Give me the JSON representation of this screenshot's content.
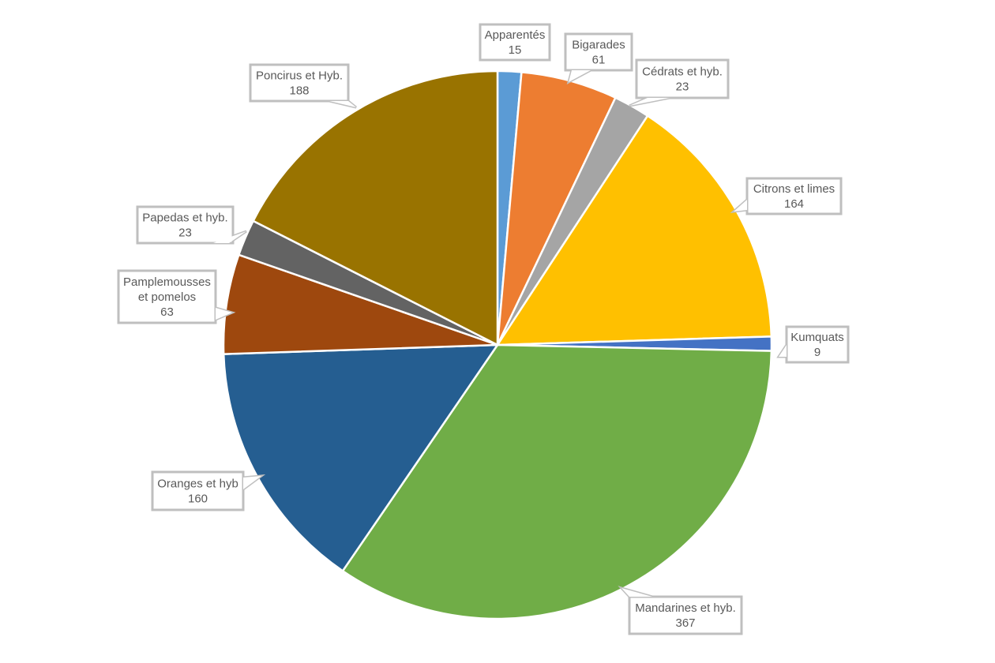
{
  "chart_data": {
    "type": "pie",
    "title": "",
    "slices": [
      {
        "name": "Apparentés",
        "value": 15,
        "color": "#5b9bd5",
        "label_lines": [
          "Apparentés",
          "15"
        ]
      },
      {
        "name": "Bigarades",
        "value": 61,
        "color": "#ed7d31",
        "label_lines": [
          "Bigarades",
          "61"
        ]
      },
      {
        "name": "Cédrats et hyb.",
        "value": 23,
        "color": "#a5a5a5",
        "label_lines": [
          "Cédrats et hyb.",
          "23"
        ]
      },
      {
        "name": "Citrons et limes",
        "value": 164,
        "color": "#ffc000",
        "label_lines": [
          "Citrons et limes",
          "164"
        ]
      },
      {
        "name": "Kumquats",
        "value": 9,
        "color": "#4472c4",
        "label_lines": [
          "Kumquats",
          "9"
        ]
      },
      {
        "name": "Mandarines et hyb.",
        "value": 367,
        "color": "#70ad47",
        "label_lines": [
          "Mandarines et hyb.",
          "367"
        ]
      },
      {
        "name": "Oranges et hyb",
        "value": 160,
        "color": "#255e91",
        "label_lines": [
          "Oranges et hyb",
          "160"
        ]
      },
      {
        "name": "Pamplemousses et pomelos",
        "value": 63,
        "color": "#9e480e",
        "label_lines": [
          "Pamplemousses",
          "et pomelos",
          "63"
        ]
      },
      {
        "name": "Papedas et hyb.",
        "value": 23,
        "color": "#636363",
        "label_lines": [
          "Papedas et hyb.",
          "23"
        ]
      },
      {
        "name": "Poncirus et Hyb.",
        "value": 188,
        "color": "#997300",
        "label_lines": [
          "Poncirus et Hyb.",
          "188"
        ]
      }
    ],
    "start_angle": "12 o'clock",
    "direction": "clockwise",
    "data_labels": "callouts",
    "legend": "none"
  }
}
